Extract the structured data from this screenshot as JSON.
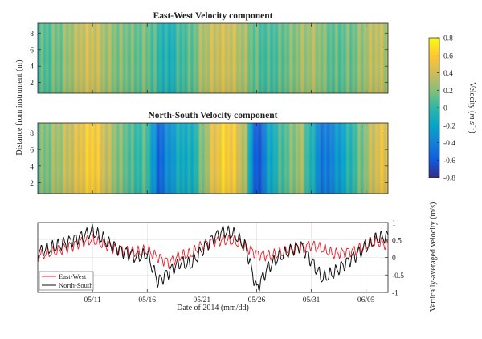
{
  "chart_data": [
    {
      "type": "heatmap",
      "title": "East-West Velocity component",
      "ylabel": "Distance from instrument (m)",
      "yticks": [
        2,
        4,
        6,
        8
      ],
      "ylim": [
        0.7,
        9.2
      ],
      "colorbar": {
        "label": "Velocity (m s^-1)",
        "label_parts": [
          "Velocity  (",
          "m s",
          "−1",
          ")"
        ],
        "ticks": [
          "0.8",
          "0.6",
          "0.4",
          "0.2",
          "0",
          "-0.2",
          "-0.4",
          "-0.6",
          "-0.8"
        ],
        "clim": [
          -0.8,
          0.8
        ]
      }
    },
    {
      "type": "heatmap",
      "title": "North-South Velocity component",
      "ylabel": "Distance from instrument (m)",
      "yticks": [
        2,
        4,
        6,
        8
      ],
      "ylim": [
        0.7,
        9.2
      ]
    },
    {
      "type": "line",
      "xlabel": "Date of 2014 (mm/dd)",
      "ylabel": "Vertically-averaged velocity (m/s)",
      "ylim": [
        -1,
        1
      ],
      "yticks": [
        "1",
        "0.5",
        "0",
        "-0.5",
        "-1"
      ],
      "xlim": [
        "05/06",
        "06/07"
      ],
      "xtick_labels": [
        "05/11",
        "05/16",
        "05/21",
        "05/26",
        "05/31",
        "06/05"
      ],
      "grid": true,
      "legend": "bottom-left",
      "series": [
        {
          "name": "East-West",
          "color": "#e8202a",
          "x": [
            "05/06",
            "05/08",
            "05/10",
            "05/11",
            "05/13",
            "05/15",
            "05/16",
            "05/17",
            "05/18",
            "05/19",
            "05/20",
            "05/21",
            "05/22",
            "05/23",
            "05/24",
            "05/25",
            "05/26",
            "05/27",
            "05/28",
            "05/30",
            "05/31",
            "06/01",
            "06/02",
            "06/04",
            "06/05",
            "06/06",
            "06/07"
          ],
          "values": [
            0.05,
            0.2,
            0.45,
            0.5,
            0.25,
            0.15,
            0.2,
            0.0,
            -0.15,
            0.05,
            0.1,
            0.35,
            0.45,
            0.5,
            0.45,
            0.3,
            0.1,
            0.05,
            0.1,
            0.3,
            0.35,
            0.25,
            0.1,
            0.2,
            0.35,
            0.45,
            0.35
          ]
        },
        {
          "name": "North-South",
          "color": "#111111",
          "x": [
            "05/06",
            "05/08",
            "05/10",
            "05/11",
            "05/13",
            "05/15",
            "05/16",
            "05/17",
            "05/18",
            "05/19",
            "05/20",
            "05/21",
            "05/22",
            "05/23",
            "05/24",
            "05/25",
            "05/26",
            "05/27",
            "05/28",
            "05/30",
            "05/31",
            "06/01",
            "06/02",
            "06/04",
            "06/05",
            "06/06",
            "06/07"
          ],
          "values": [
            0.15,
            0.35,
            0.6,
            0.75,
            0.3,
            0.0,
            0.1,
            -0.7,
            -0.4,
            -0.15,
            -0.2,
            0.2,
            0.55,
            0.75,
            0.65,
            0.3,
            -0.9,
            -0.3,
            0.0,
            0.35,
            -0.1,
            -0.6,
            -0.45,
            0.05,
            0.3,
            0.55,
            0.6
          ]
        }
      ]
    }
  ],
  "colors": {
    "frame": "#222222",
    "grid": "#dcdcdc"
  },
  "colormap": [
    "#352a87",
    "#0f5cdd",
    "#1481d6",
    "#06a4ca",
    "#2eb7a4",
    "#87bf77",
    "#d1bb59",
    "#fec832",
    "#f9fb0e"
  ]
}
